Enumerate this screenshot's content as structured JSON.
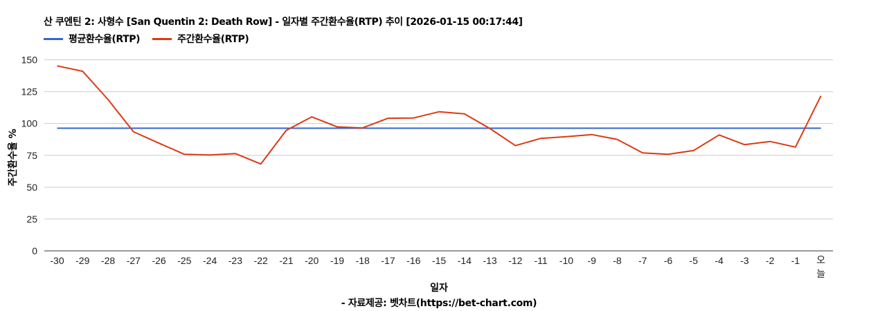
{
  "header": {
    "title": "산 쿠엔틴 2: 사형수 [San Quentin 2: Death Row] - 일자별 주간환수율(RTP) 추이 [2026-01-15 00:17:44]"
  },
  "legend": [
    {
      "label": "평균환수율(RTP)",
      "color": "#3366cc"
    },
    {
      "label": "주간환수율(RTP)",
      "color": "#dc3912"
    }
  ],
  "axes": {
    "ylabel": "주간환수율 %",
    "xlabel": "일자",
    "yticks": [
      "0",
      "25",
      "50",
      "75",
      "100",
      "125",
      "150"
    ]
  },
  "footer": {
    "source": "- 자료제공: 벳차트(https://bet-chart.com)"
  },
  "chart_data": {
    "type": "line",
    "title": "산 쿠엔틴 2: 사형수 [San Quentin 2: Death Row] - 일자별 주간환수율(RTP) 추이 [2026-01-15 00:17:44]",
    "xlabel": "일자",
    "ylabel": "주간환수율 %",
    "ylim": [
      0,
      150
    ],
    "grid": true,
    "legend_position": "top-left",
    "categories": [
      "-30",
      "-29",
      "-28",
      "-27",
      "-26",
      "-25",
      "-24",
      "-23",
      "-22",
      "-21",
      "-20",
      "-19",
      "-18",
      "-17",
      "-16",
      "-15",
      "-14",
      "-13",
      "-12",
      "-11",
      "-10",
      "-9",
      "-8",
      "-7",
      "-6",
      "-5",
      "-4",
      "-3",
      "-2",
      "-1",
      "오늘"
    ],
    "series": [
      {
        "name": "평균환수율(RTP)",
        "color": "#3366cc",
        "values": [
          96.3,
          96.3,
          96.3,
          96.3,
          96.3,
          96.3,
          96.3,
          96.3,
          96.3,
          96.3,
          96.3,
          96.3,
          96.3,
          96.3,
          96.3,
          96.3,
          96.3,
          96.3,
          96.3,
          96.3,
          96.3,
          96.3,
          96.3,
          96.3,
          96.3,
          96.3,
          96.3,
          96.3,
          96.3,
          96.3,
          96.3
        ]
      },
      {
        "name": "주간환수율(RTP)",
        "color": "#dc3912",
        "values": [
          145.2,
          141.0,
          118.8,
          93.5,
          84.5,
          75.8,
          75.3,
          76.4,
          68.2,
          94.6,
          105.2,
          97.3,
          96.5,
          104.1,
          104.3,
          109.2,
          107.6,
          96.0,
          82.6,
          88.3,
          89.6,
          91.3,
          87.5,
          76.9,
          75.8,
          78.8,
          91.0,
          83.4,
          85.9,
          81.5,
          121.7
        ]
      }
    ]
  }
}
